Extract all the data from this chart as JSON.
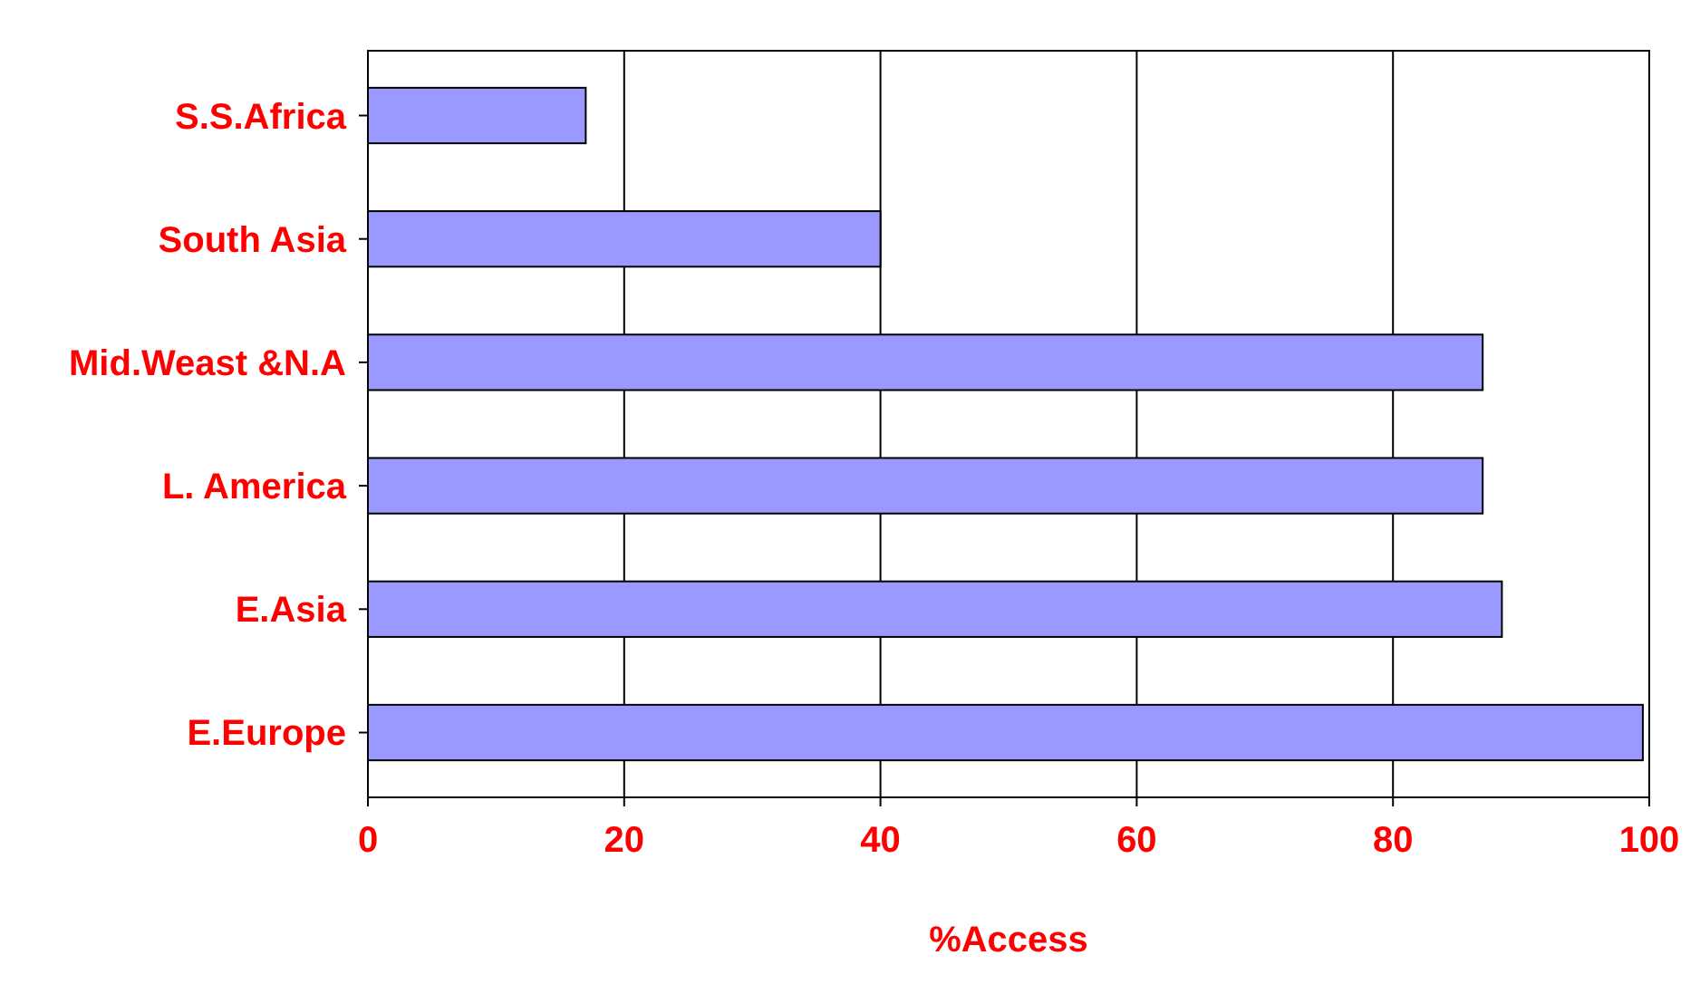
{
  "chart_data": {
    "type": "bar",
    "orientation": "horizontal",
    "xlabel": "%Access",
    "categories": [
      "S.S.Africa",
      "South Asia",
      "Mid.Weast &N.A",
      "L. America",
      "E.Asia",
      "E.Europe"
    ],
    "values": [
      17,
      40,
      87,
      87,
      88.5,
      99.5
    ],
    "color": "#9999ff",
    "xlim": [
      0,
      100
    ],
    "xticks": [
      0,
      20,
      40,
      60,
      80,
      100
    ],
    "grid": "x"
  }
}
